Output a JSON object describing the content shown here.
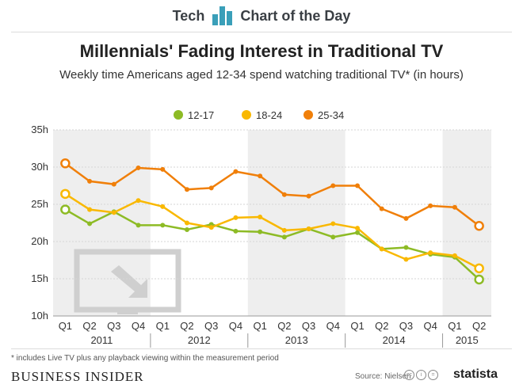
{
  "header": {
    "left": "Tech",
    "right": "Chart of the Day"
  },
  "footer": {
    "footnote": "* includes Live TV plus any playback viewing within the measurement period",
    "brand": "BUSINESS INSIDER",
    "source": "Source: Nielsen",
    "statista": "statista"
  },
  "colors": {
    "s1": "#8dbb25",
    "s2": "#f9b800",
    "s3": "#f07f09",
    "band": "#eeeeee"
  },
  "chart_data": {
    "type": "line",
    "title": "Millennials' Fading Interest in Traditional TV",
    "subtitle": "Weekly time Americans aged 12-34 spend watching traditional TV* (in hours)",
    "xlabel": "",
    "ylabel": "",
    "ylim": [
      10,
      35
    ],
    "yticks": [
      10,
      15,
      20,
      25,
      30,
      35
    ],
    "ytick_labels": [
      "10h",
      "15h",
      "20h",
      "25h",
      "30h",
      "35h"
    ],
    "categories": [
      "Q1",
      "Q2",
      "Q3",
      "Q4",
      "Q1",
      "Q2",
      "Q3",
      "Q4",
      "Q1",
      "Q2",
      "Q3",
      "Q4",
      "Q1",
      "Q2",
      "Q3",
      "Q4",
      "Q1",
      "Q2"
    ],
    "years": [
      {
        "label": "2011",
        "start": 0,
        "end": 3
      },
      {
        "label": "2012",
        "start": 4,
        "end": 7
      },
      {
        "label": "2013",
        "start": 8,
        "end": 11
      },
      {
        "label": "2014",
        "start": 12,
        "end": 15
      },
      {
        "label": "2015",
        "start": 16,
        "end": 17
      }
    ],
    "series": [
      {
        "name": "12-17",
        "values": [
          24.3,
          22.4,
          24.0,
          22.2,
          22.2,
          21.6,
          22.3,
          21.4,
          21.3,
          20.6,
          21.7,
          20.6,
          21.2,
          19.0,
          19.2,
          18.3,
          17.9,
          14.9
        ]
      },
      {
        "name": "18-24",
        "values": [
          26.4,
          24.3,
          23.9,
          25.5,
          24.7,
          22.5,
          21.9,
          23.2,
          23.3,
          21.5,
          21.7,
          22.4,
          21.8,
          19.0,
          17.6,
          18.5,
          18.1,
          16.4
        ]
      },
      {
        "name": "25-34",
        "values": [
          30.5,
          28.1,
          27.7,
          29.9,
          29.7,
          27.0,
          27.2,
          29.4,
          28.8,
          26.3,
          26.1,
          27.5,
          27.5,
          24.4,
          23.1,
          24.8,
          24.6,
          22.1
        ]
      }
    ],
    "legend": "top-center"
  }
}
